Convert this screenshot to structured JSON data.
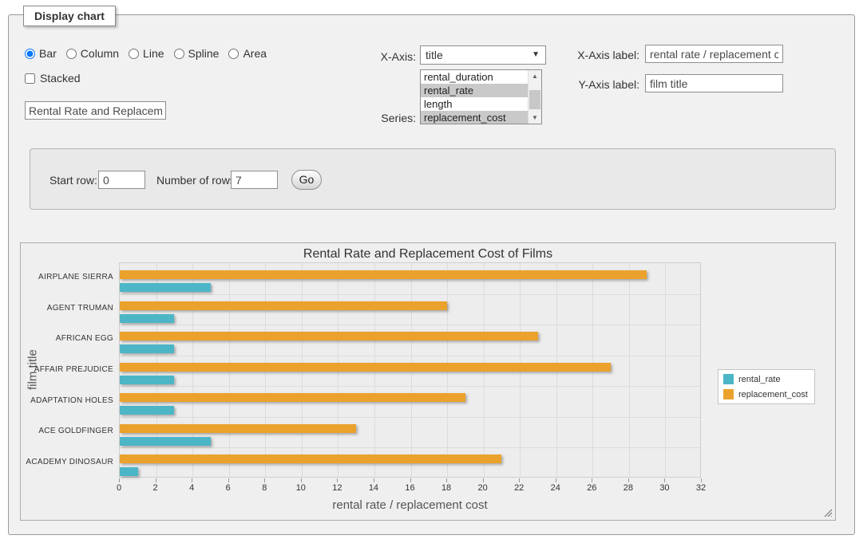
{
  "panel": {
    "legend_title": "Display chart",
    "chart_types": [
      "Bar",
      "Column",
      "Line",
      "Spline",
      "Area"
    ],
    "selected_type": "Bar",
    "stacked_label": "Stacked",
    "stacked_checked": false,
    "chart_title_value": "Rental Rate and Replacemer",
    "xaxis_label": "X-Axis:",
    "xaxis_value": "title",
    "series_label": "Series:",
    "series_options": [
      {
        "label": "rental_duration",
        "selected": false
      },
      {
        "label": "rental_rate",
        "selected": true
      },
      {
        "label": "length",
        "selected": false
      },
      {
        "label": "replacement_cost",
        "selected": true
      }
    ],
    "xaxis_label_label": "X-Axis label:",
    "xaxis_label_value": "rental rate / replacement cost",
    "yaxis_label_label": "Y-Axis label:",
    "yaxis_label_value": "film title"
  },
  "rows_panel": {
    "start_row_label": "Start row:",
    "start_row_value": "0",
    "num_rows_label": "Number of rows:",
    "num_rows_value": "7",
    "go_label": "Go"
  },
  "chart_data": {
    "type": "bar",
    "title": "Rental Rate and Replacement Cost of Films",
    "xlabel": "rental rate / replacement cost",
    "ylabel": "film title",
    "categories": [
      "AIRPLANE SIERRA",
      "AGENT TRUMAN",
      "AFRICAN EGG",
      "AFFAIR PREJUDICE",
      "ADAPTATION HOLES",
      "ACE GOLDFINGER",
      "ACADEMY DINOSAUR"
    ],
    "series": [
      {
        "name": "rental_rate",
        "color": "#4cb6c7",
        "values": [
          4.99,
          2.99,
          2.99,
          2.99,
          2.99,
          4.99,
          0.99
        ]
      },
      {
        "name": "replacement_cost",
        "color": "#eaa22d",
        "values": [
          28.99,
          17.99,
          22.99,
          26.99,
          18.99,
          12.99,
          20.99
        ]
      }
    ],
    "xlim": [
      0,
      32
    ],
    "xticks": [
      0,
      2,
      4,
      6,
      8,
      10,
      12,
      14,
      16,
      18,
      20,
      22,
      24,
      26,
      28,
      30,
      32
    ],
    "grid": true,
    "legend_position": "right",
    "bar_draw_order_top_to_bottom": [
      "replacement_cost",
      "rental_rate"
    ]
  }
}
